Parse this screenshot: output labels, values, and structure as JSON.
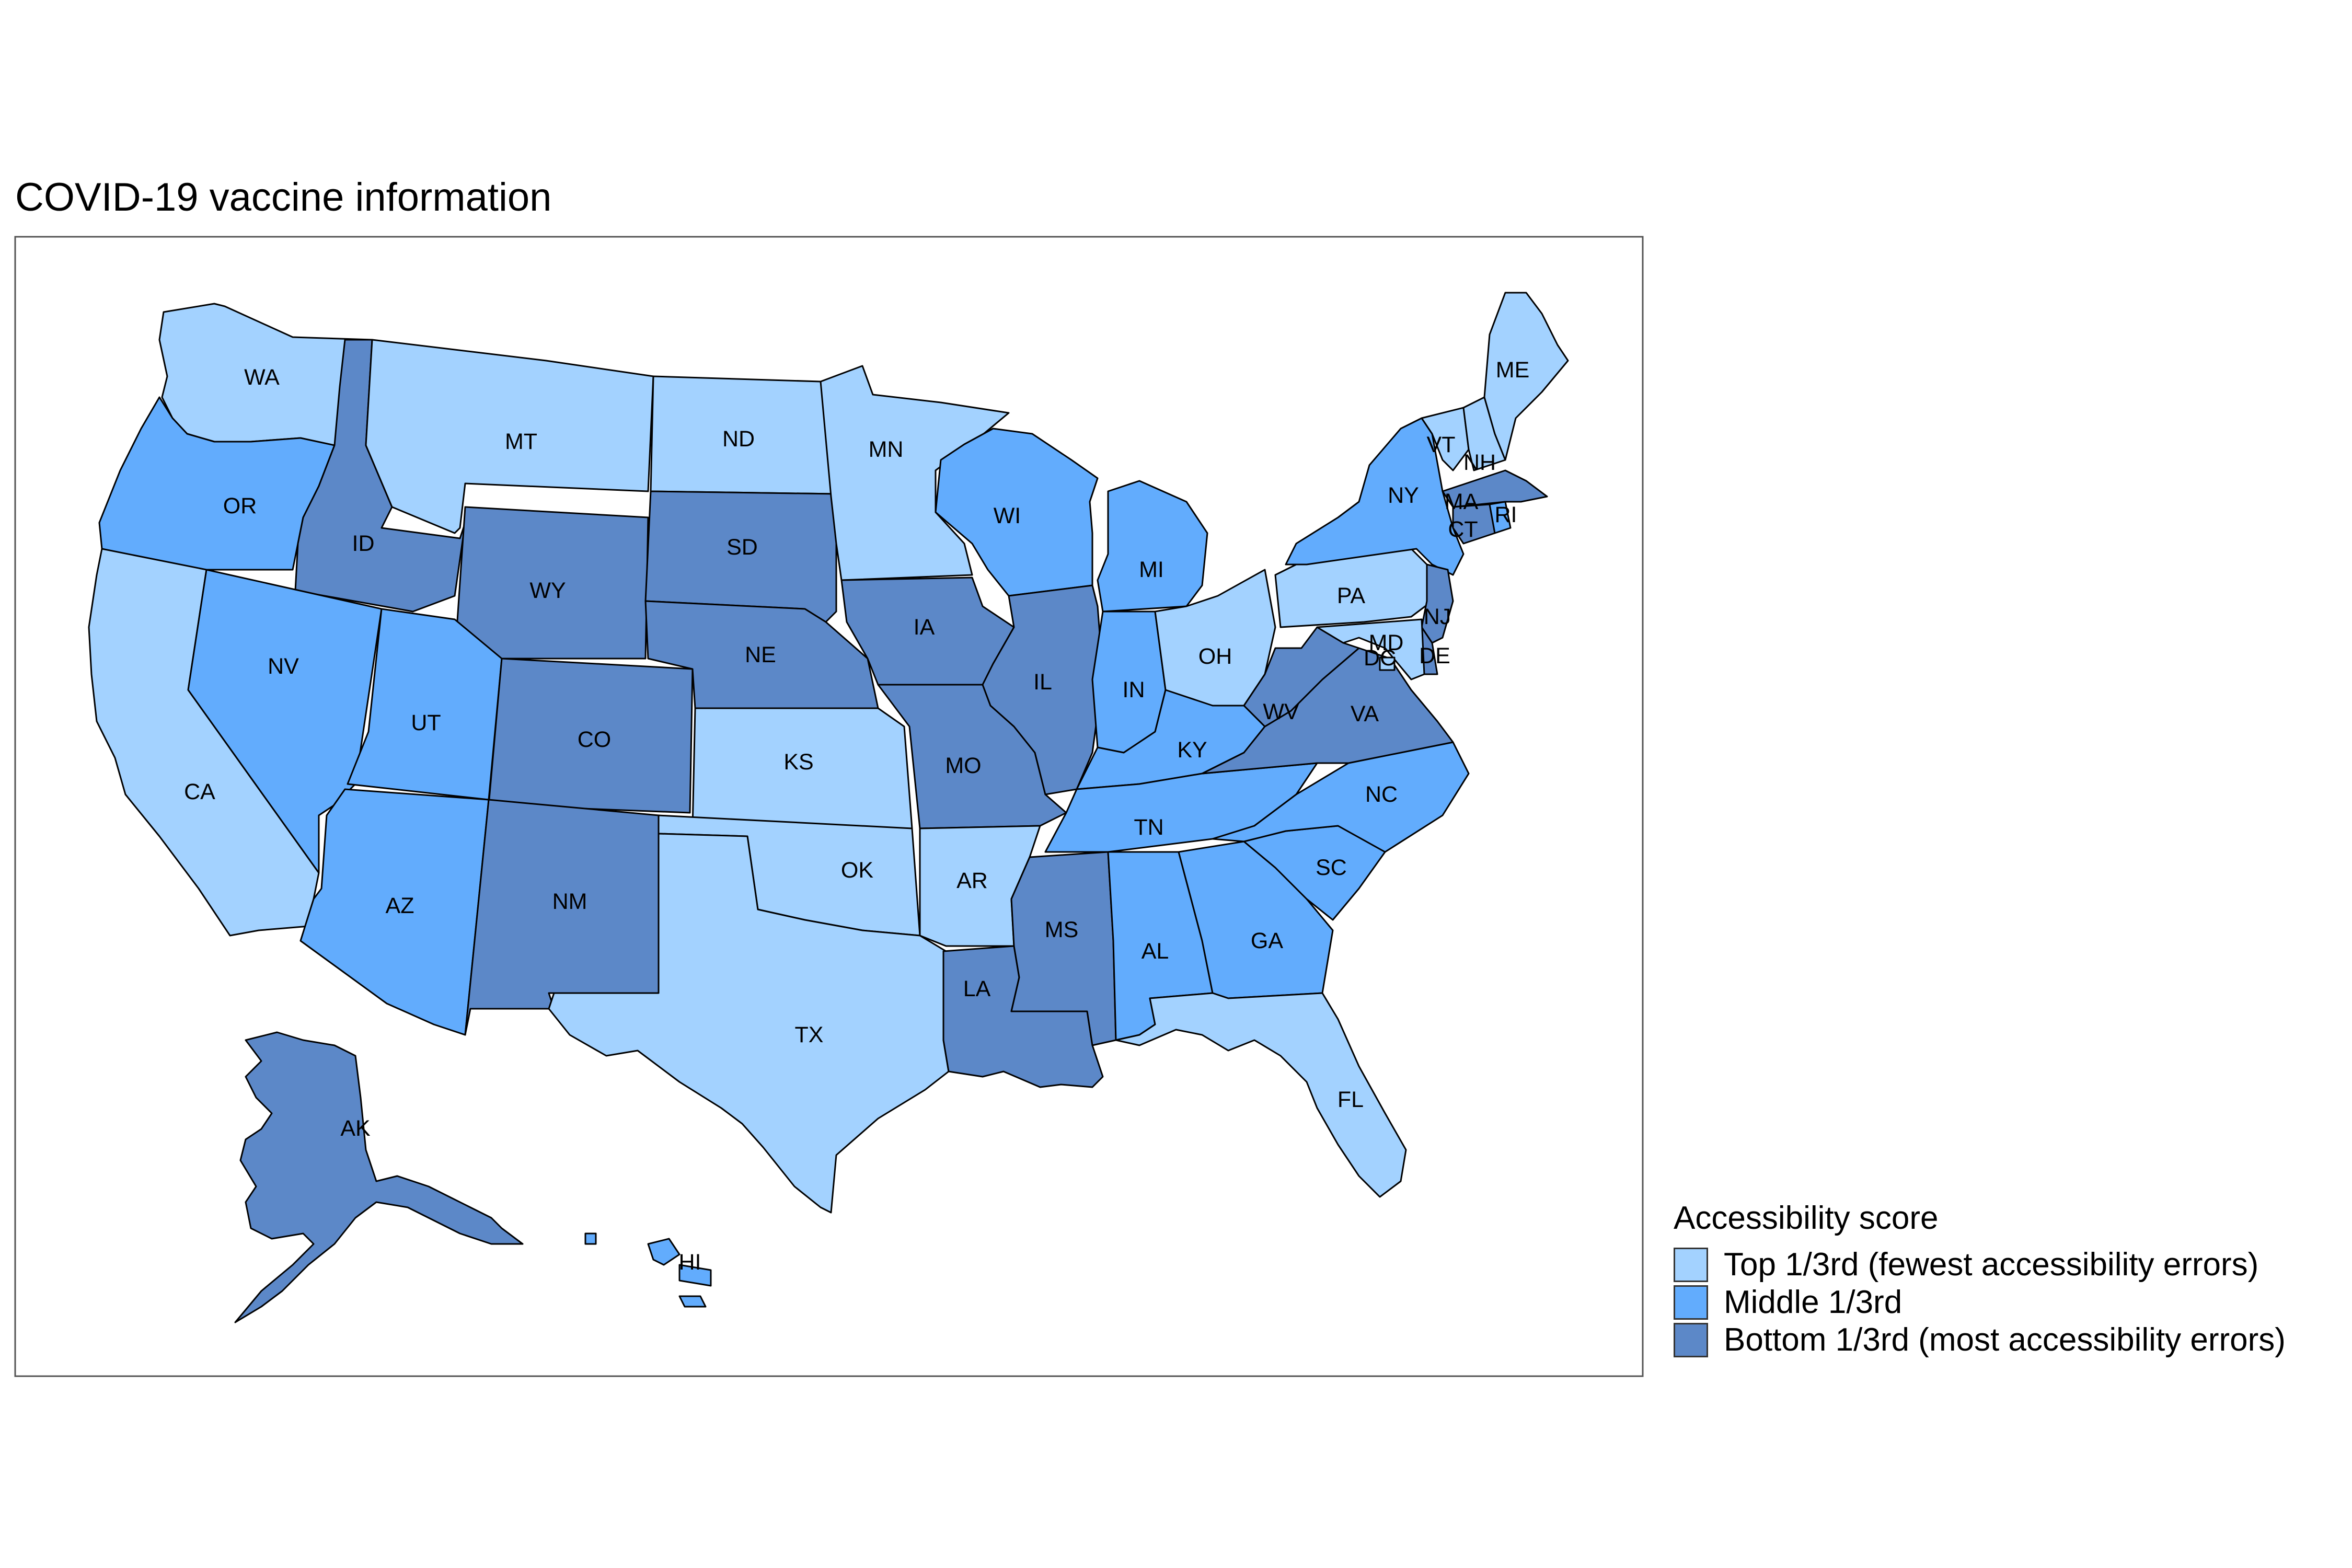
{
  "title": "COVID-19 vaccine information",
  "legend": {
    "title": "Accessibility score",
    "items": [
      {
        "key": "top",
        "label": "Top 1/3rd (fewest accessibility errors)",
        "color": "#a3d2ff"
      },
      {
        "key": "middle",
        "label": "Middle 1/3rd",
        "color": "#62acfd"
      },
      {
        "key": "bottom",
        "label": "Bottom 1/3rd (most accessibility errors)",
        "color": "#5c88c8"
      }
    ]
  },
  "chart_data": {
    "type": "choropleth",
    "legend_placement": "right",
    "states": [
      {
        "abbr": "WA",
        "category": "top"
      },
      {
        "abbr": "OR",
        "category": "middle"
      },
      {
        "abbr": "CA",
        "category": "top"
      },
      {
        "abbr": "ID",
        "category": "bottom"
      },
      {
        "abbr": "NV",
        "category": "middle"
      },
      {
        "abbr": "MT",
        "category": "top"
      },
      {
        "abbr": "WY",
        "category": "bottom"
      },
      {
        "abbr": "UT",
        "category": "middle"
      },
      {
        "abbr": "AZ",
        "category": "middle"
      },
      {
        "abbr": "CO",
        "category": "bottom"
      },
      {
        "abbr": "NM",
        "category": "bottom"
      },
      {
        "abbr": "ND",
        "category": "top"
      },
      {
        "abbr": "SD",
        "category": "bottom"
      },
      {
        "abbr": "NE",
        "category": "bottom"
      },
      {
        "abbr": "KS",
        "category": "top"
      },
      {
        "abbr": "OK",
        "category": "top"
      },
      {
        "abbr": "TX",
        "category": "top"
      },
      {
        "abbr": "MN",
        "category": "top"
      },
      {
        "abbr": "IA",
        "category": "bottom"
      },
      {
        "abbr": "MO",
        "category": "bottom"
      },
      {
        "abbr": "AR",
        "category": "top"
      },
      {
        "abbr": "LA",
        "category": "bottom"
      },
      {
        "abbr": "WI",
        "category": "middle"
      },
      {
        "abbr": "IL",
        "category": "bottom"
      },
      {
        "abbr": "MS",
        "category": "bottom"
      },
      {
        "abbr": "MI",
        "category": "middle"
      },
      {
        "abbr": "IN",
        "category": "middle"
      },
      {
        "abbr": "OH",
        "category": "top"
      },
      {
        "abbr": "KY",
        "category": "middle"
      },
      {
        "abbr": "TN",
        "category": "middle"
      },
      {
        "abbr": "AL",
        "category": "middle"
      },
      {
        "abbr": "GA",
        "category": "middle"
      },
      {
        "abbr": "FL",
        "category": "top"
      },
      {
        "abbr": "SC",
        "category": "middle"
      },
      {
        "abbr": "NC",
        "category": "middle"
      },
      {
        "abbr": "VA",
        "category": "bottom"
      },
      {
        "abbr": "WV",
        "category": "bottom"
      },
      {
        "abbr": "PA",
        "category": "top"
      },
      {
        "abbr": "NY",
        "category": "middle"
      },
      {
        "abbr": "VT",
        "category": "top"
      },
      {
        "abbr": "NH",
        "category": "top"
      },
      {
        "abbr": "ME",
        "category": "top"
      },
      {
        "abbr": "MA",
        "category": "bottom"
      },
      {
        "abbr": "CT",
        "category": "bottom"
      },
      {
        "abbr": "RI",
        "category": "middle"
      },
      {
        "abbr": "NJ",
        "category": "bottom"
      },
      {
        "abbr": "DE",
        "category": "bottom"
      },
      {
        "abbr": "MD",
        "category": "top"
      },
      {
        "abbr": "DC",
        "category": "top"
      },
      {
        "abbr": "AK",
        "category": "bottom"
      },
      {
        "abbr": "HI",
        "category": "middle"
      }
    ]
  }
}
